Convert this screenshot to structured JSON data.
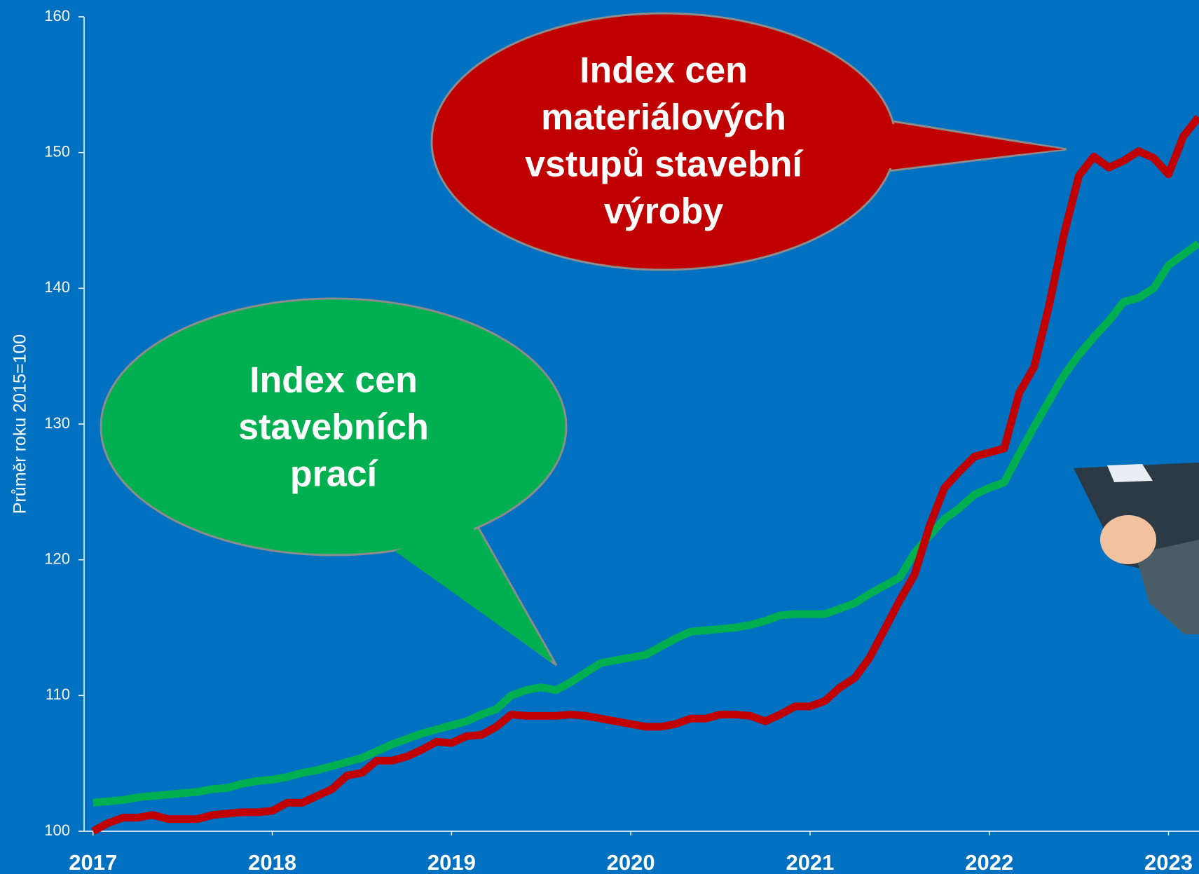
{
  "chart_data": {
    "type": "line",
    "y_label": "Průměr roku 2015=100",
    "x": [
      2017,
      2017.083,
      2017.167,
      2017.25,
      2017.333,
      2017.417,
      2017.5,
      2017.583,
      2017.667,
      2017.75,
      2017.833,
      2017.917,
      2018,
      2018.083,
      2018.167,
      2018.25,
      2018.333,
      2018.417,
      2018.5,
      2018.583,
      2018.667,
      2018.75,
      2018.833,
      2018.917,
      2019,
      2019.083,
      2019.167,
      2019.25,
      2019.333,
      2019.417,
      2019.5,
      2019.583,
      2019.667,
      2019.75,
      2019.833,
      2019.917,
      2020,
      2020.083,
      2020.167,
      2020.25,
      2020.333,
      2020.417,
      2020.5,
      2020.583,
      2020.667,
      2020.75,
      2020.833,
      2020.917,
      2021,
      2021.083,
      2021.167,
      2021.25,
      2021.333,
      2021.417,
      2021.5,
      2021.583,
      2021.667,
      2021.75,
      2021.833,
      2021.917,
      2022,
      2022.083,
      2022.167,
      2022.25,
      2022.333,
      2022.417,
      2022.5,
      2022.583,
      2022.667,
      2022.75,
      2022.833,
      2022.917,
      2023,
      2023.083,
      2023.167
    ],
    "series": [
      {
        "color": "#00b050",
        "values": [
          102.1,
          102.2,
          102.3,
          102.5,
          102.6,
          102.7,
          102.8,
          102.9,
          103.1,
          103.2,
          103.5,
          103.7,
          103.8,
          104.0,
          104.3,
          104.5,
          104.8,
          105.1,
          105.4,
          105.9,
          106.4,
          106.8,
          107.2,
          107.5,
          107.8,
          108.1,
          108.6,
          109.0,
          110.0,
          110.4,
          110.6,
          110.4,
          111.0,
          111.7,
          112.4,
          112.6,
          112.8,
          113.0,
          113.6,
          114.2,
          114.7,
          114.8,
          114.9,
          115.0,
          115.2,
          115.5,
          115.9,
          116.0,
          116.0,
          116.0,
          116.4,
          116.8,
          117.5,
          118.1,
          118.7,
          120.5,
          121.8,
          123.0,
          123.8,
          124.8,
          125.3,
          125.7,
          127.8,
          129.8,
          131.7,
          133.6,
          135.1,
          136.4,
          137.6,
          139.0,
          139.3,
          140.0,
          141.7,
          142.5,
          143.3
        ]
      },
      {
        "color": "#c00000",
        "values": [
          100.0,
          100.6,
          101.0,
          101.0,
          101.2,
          100.9,
          100.9,
          100.9,
          101.2,
          101.3,
          101.4,
          101.4,
          101.5,
          102.1,
          102.1,
          102.6,
          103.1,
          104.1,
          104.3,
          105.2,
          105.2,
          105.5,
          106.0,
          106.6,
          106.5,
          107.0,
          107.1,
          107.7,
          108.6,
          108.5,
          108.5,
          108.5,
          108.6,
          108.5,
          108.3,
          108.1,
          107.9,
          107.7,
          107.7,
          107.9,
          108.3,
          108.3,
          108.6,
          108.6,
          108.5,
          108.1,
          108.6,
          109.2,
          109.2,
          109.6,
          110.6,
          111.3,
          112.8,
          114.9,
          117.0,
          118.9,
          122.5,
          125.3,
          126.5,
          127.6,
          127.9,
          128.2,
          132.3,
          134.2,
          138.7,
          144.0,
          148.3,
          149.7,
          148.9,
          149.4,
          150.1,
          149.6,
          148.4,
          151.2,
          152.6
        ]
      }
    ],
    "xlim": [
      2016.95,
      2023.17
    ],
    "xticks": [
      2017,
      2018,
      2019,
      2020,
      2021,
      2022,
      2023
    ],
    "ylim": [
      100,
      160
    ],
    "yticks": [
      100,
      110,
      120,
      130,
      140,
      150,
      160
    ],
    "annotations": [
      {
        "text": [
          "Index cen",
          "materiálových",
          "vstupů stavební",
          "výroby"
        ],
        "color": "#c00000"
      },
      {
        "text": [
          "Index cen",
          "stavebních",
          "prací"
        ],
        "color": "#00b050"
      }
    ]
  }
}
